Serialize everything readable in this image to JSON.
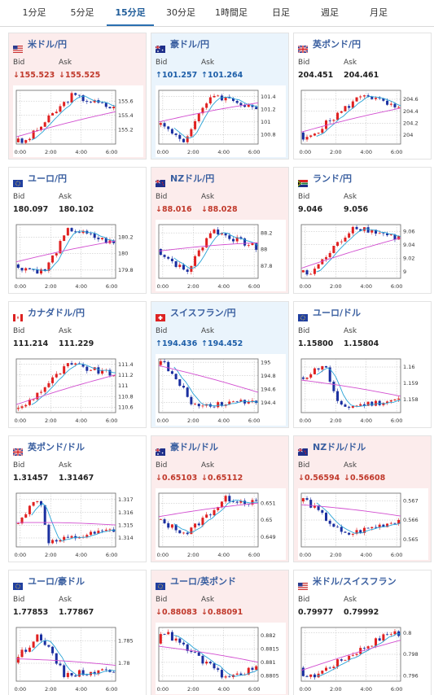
{
  "tabs": [
    {
      "label": "1分足",
      "active": false
    },
    {
      "label": "5分足",
      "active": false
    },
    {
      "label": "15分足",
      "active": true
    },
    {
      "label": "30分足",
      "active": false
    },
    {
      "label": "1時間足",
      "active": false
    },
    {
      "label": "日足",
      "active": false
    },
    {
      "label": "週足",
      "active": false
    },
    {
      "label": "月足",
      "active": false
    }
  ],
  "labels": {
    "bid": "Bid",
    "ask": "Ask"
  },
  "colors": {
    "up_arrow": "#1d5ea8",
    "down_arrow": "#c0392b",
    "candle_up": "#e02020",
    "candle_down": "#1a2fa0",
    "ma_short": "#29a3d6",
    "ma_long": "#d24ed0"
  },
  "cards": [
    {
      "pair": "米ドル/円",
      "flag": "us",
      "dir": "down",
      "bid": "155.523",
      "ask": "155.525",
      "chart": {
        "x_ticks": [
          "0:00",
          "2:00",
          "4:00",
          "6:00"
        ],
        "y_ticks": [
          155.6,
          155.4,
          155.2
        ],
        "ylim": [
          155.0,
          155.75
        ],
        "start": 155.05,
        "end": 155.5,
        "peak": 155.68,
        "peak_pos": 0.58,
        "trough": 155.02,
        "trough_pos": 0.1,
        "ma_start": 155.1,
        "ma_end": 155.45
      }
    },
    {
      "pair": "豪ドル/円",
      "flag": "au",
      "dir": "up",
      "bid": "101.257",
      "ask": "101.264",
      "chart": {
        "x_ticks": [
          "0:00",
          "2:00",
          "4:00",
          "6:00"
        ],
        "y_ticks": [
          101.4,
          101.2,
          101,
          100.8
        ],
        "ylim": [
          100.65,
          101.5
        ],
        "start": 101.0,
        "end": 101.22,
        "peak": 101.44,
        "peak_pos": 0.55,
        "trough": 100.7,
        "trough_pos": 0.28,
        "ma_start": 101.0,
        "ma_end": 101.3
      }
    },
    {
      "pair": "英ポンド/円",
      "flag": "gb",
      "dir": "none",
      "bid": "204.451",
      "ask": "204.461",
      "chart": {
        "x_ticks": [
          "0:00",
          "2:00",
          "4:00",
          "6:00"
        ],
        "y_ticks": [
          204.6,
          204.4,
          204.2,
          204
        ],
        "ylim": [
          203.85,
          204.75
        ],
        "start": 204.0,
        "end": 204.42,
        "peak": 204.7,
        "peak_pos": 0.65,
        "trough": 203.9,
        "trough_pos": 0.05,
        "ma_start": 204.05,
        "ma_end": 204.45
      }
    },
    {
      "pair": "ユーロ/円",
      "flag": "eu",
      "dir": "none",
      "bid": "180.097",
      "ask": "180.102",
      "chart": {
        "x_ticks": [
          "0:00",
          "2:00",
          "4:00",
          "6:00"
        ],
        "y_ticks": [
          180.2,
          180,
          179.8
        ],
        "ylim": [
          179.7,
          180.35
        ],
        "start": 179.85,
        "end": 180.12,
        "peak": 180.3,
        "peak_pos": 0.55,
        "trough": 179.78,
        "trough_pos": 0.3,
        "ma_start": 179.9,
        "ma_end": 180.15
      }
    },
    {
      "pair": "NZドル/円",
      "flag": "nz",
      "dir": "down",
      "bid": "88.016",
      "ask": "88.028",
      "chart": {
        "x_ticks": [
          "0:00",
          "2:00",
          "4:00",
          "6:00"
        ],
        "y_ticks": [
          88.2,
          88,
          87.8
        ],
        "ylim": [
          87.65,
          88.3
        ],
        "start": 88.0,
        "end": 88.02,
        "peak": 88.24,
        "peak_pos": 0.55,
        "trough": 87.72,
        "trough_pos": 0.3,
        "ma_start": 87.98,
        "ma_end": 88.08
      }
    },
    {
      "pair": "ランド/円",
      "flag": "za",
      "dir": "none",
      "bid": "9.046",
      "ask": "9.056",
      "chart": {
        "x_ticks": [
          "0:00",
          "2:00",
          "4:00",
          "6:00"
        ],
        "y_ticks": [
          9.06,
          9.04,
          9.02,
          9
        ],
        "ylim": [
          8.99,
          9.07
        ],
        "start": 9.0,
        "end": 9.05,
        "peak": 9.068,
        "peak_pos": 0.55,
        "trough": 8.995,
        "trough_pos": 0.1,
        "ma_start": 9.005,
        "ma_end": 9.05
      }
    },
    {
      "pair": "カナダドル/円",
      "flag": "ca",
      "dir": "none",
      "bid": "111.214",
      "ask": "111.229",
      "chart": {
        "x_ticks": [
          "0:00",
          "2:00",
          "4:00",
          "6:00"
        ],
        "y_ticks": [
          111.4,
          111.2,
          111,
          110.8,
          110.6
        ],
        "ylim": [
          110.5,
          111.5
        ],
        "start": 110.6,
        "end": 111.2,
        "peak": 111.4,
        "peak_pos": 0.55,
        "trough": 110.55,
        "trough_pos": 0.05,
        "ma_start": 110.65,
        "ma_end": 111.2
      }
    },
    {
      "pair": "スイスフラン/円",
      "flag": "ch",
      "dir": "up",
      "bid": "194.436",
      "ask": "194.452",
      "chart": {
        "x_ticks": [
          "0:00",
          "2:00",
          "4:00",
          "6:00"
        ],
        "y_ticks": [
          195,
          194.8,
          194.6,
          194.4
        ],
        "ylim": [
          194.25,
          195.05
        ],
        "start": 195.0,
        "end": 194.44,
        "peak": 195.02,
        "peak_pos": 0.05,
        "trough": 194.35,
        "trough_pos": 0.38,
        "ma_start": 194.95,
        "ma_end": 194.55
      }
    },
    {
      "pair": "ユーロ/ドル",
      "flag": "eu",
      "dir": "none",
      "bid": "1.15800",
      "ask": "1.15804",
      "chart": {
        "x_ticks": [
          "0:00",
          "2:00",
          "4:00",
          "6:00"
        ],
        "y_ticks": [
          1.16,
          1.159,
          1.158
        ],
        "ylim": [
          1.1572,
          1.1605
        ],
        "start": 1.1592,
        "end": 1.158,
        "peak": 1.1602,
        "peak_pos": 0.25,
        "trough": 1.1575,
        "trough_pos": 0.4,
        "ma_start": 1.1592,
        "ma_end": 1.1582
      }
    },
    {
      "pair": "英ポンド/ドル",
      "flag": "gb",
      "dir": "none",
      "bid": "1.31457",
      "ask": "1.31467",
      "chart": {
        "x_ticks": [
          "0:00",
          "2:00",
          "4:00",
          "6:00"
        ],
        "y_ticks": [
          1.317,
          1.316,
          1.315,
          1.314
        ],
        "ylim": [
          1.3133,
          1.3175
        ],
        "start": 1.315,
        "end": 1.3146,
        "peak": 1.3172,
        "peak_pos": 0.25,
        "trough": 1.3136,
        "trough_pos": 0.35,
        "ma_start": 1.3152,
        "ma_end": 1.315
      }
    },
    {
      "pair": "豪ドル/ドル",
      "flag": "au",
      "dir": "down",
      "bid": "0.65103",
      "ask": "0.65112",
      "chart": {
        "x_ticks": [
          "0:00",
          "2:00",
          "4:00",
          "6:00"
        ],
        "y_ticks": [
          0.651,
          0.65,
          0.649
        ],
        "ylim": [
          0.6484,
          0.6516
        ],
        "start": 0.65,
        "end": 0.651,
        "peak": 0.6513,
        "peak_pos": 0.7,
        "trough": 0.6492,
        "trough_pos": 0.3,
        "ma_start": 0.6502,
        "ma_end": 0.651
      }
    },
    {
      "pair": "NZドル/ドル",
      "flag": "nz",
      "dir": "down",
      "bid": "0.56594",
      "ask": "0.56608",
      "chart": {
        "x_ticks": [
          "0:00",
          "2:00",
          "4:00",
          "6:00"
        ],
        "y_ticks": [
          0.567,
          0.566,
          0.565
        ],
        "ylim": [
          0.5646,
          0.5674
        ],
        "start": 0.567,
        "end": 0.566,
        "peak": 0.5671,
        "peak_pos": 0.05,
        "trough": 0.5652,
        "trough_pos": 0.45,
        "ma_start": 0.5668,
        "ma_end": 0.5662
      }
    },
    {
      "pair": "ユーロ/豪ドル",
      "flag": "eu",
      "dir": "none",
      "bid": "1.77853",
      "ask": "1.77867",
      "chart": {
        "x_ticks": [
          "0:00",
          "2:00",
          "4:00",
          "6:00"
        ],
        "y_ticks": [
          1.785,
          1.78
        ],
        "ylim": [
          1.776,
          1.788
        ],
        "start": 1.7805,
        "end": 1.7785,
        "peak": 1.7865,
        "peak_pos": 0.25,
        "trough": 1.7775,
        "trough_pos": 0.5,
        "ma_start": 1.781,
        "ma_end": 1.7795
      }
    },
    {
      "pair": "ユーロ/英ポンド",
      "flag": "eu",
      "dir": "down",
      "bid": "0.88083",
      "ask": "0.88091",
      "chart": {
        "x_ticks": [
          "0:00",
          "2:00",
          "4:00",
          "6:00"
        ],
        "y_ticks": [
          0.882,
          0.8815,
          0.881,
          0.8805
        ],
        "ylim": [
          0.8803,
          0.8823
        ],
        "start": 0.8818,
        "end": 0.8808,
        "peak": 0.8822,
        "peak_pos": 0.05,
        "trough": 0.8804,
        "trough_pos": 0.7,
        "ma_start": 0.8816,
        "ma_end": 0.881
      }
    },
    {
      "pair": "米ドル/スイスフラン",
      "flag": "us",
      "dir": "none",
      "bid": "0.79977",
      "ask": "0.79992",
      "chart": {
        "x_ticks": [
          "0:00",
          "2:00",
          "4:00",
          "6:00"
        ],
        "y_ticks": [
          0.8,
          0.798,
          0.796
        ],
        "ylim": [
          0.7955,
          0.8005
        ],
        "start": 0.7965,
        "end": 0.7998,
        "peak": 0.8002,
        "peak_pos": 0.95,
        "trough": 0.7958,
        "trough_pos": 0.1,
        "ma_start": 0.7965,
        "ma_end": 0.7993
      }
    }
  ]
}
